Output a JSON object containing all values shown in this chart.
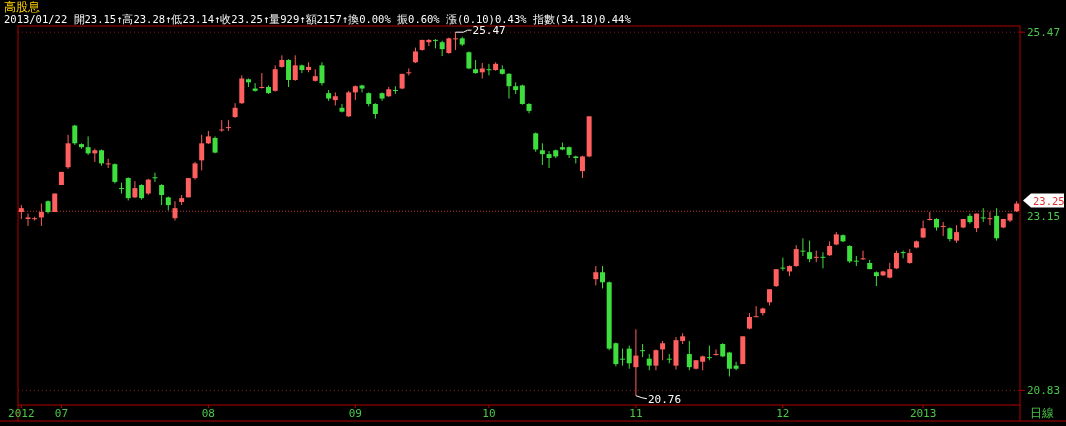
{
  "chart_data": {
    "type": "candlestick",
    "title": "高股息",
    "subtitle": "2013/01/22 開23.15↑高23.28↑低23.14↑收23.25↑量929↑額2157↑換0.00% 振0.60% 漲(0.10)0.43% 指數(34.18)0.44%",
    "categories": [
      "2012",
      null,
      null,
      null,
      null,
      null,
      "07",
      null,
      null,
      null,
      null,
      null,
      null,
      null,
      null,
      null,
      null,
      null,
      null,
      null,
      null,
      null,
      null,
      null,
      null,
      null,
      null,
      null,
      "08",
      null,
      null,
      null,
      null,
      null,
      null,
      null,
      null,
      null,
      null,
      null,
      null,
      null,
      null,
      null,
      null,
      null,
      null,
      null,
      null,
      null,
      "09",
      null,
      null,
      null,
      null,
      null,
      null,
      null,
      null,
      null,
      null,
      null,
      null,
      null,
      null,
      null,
      null,
      null,
      null,
      null,
      "10",
      null,
      null,
      null,
      null,
      null,
      null,
      null,
      null,
      null,
      null,
      null,
      null,
      null,
      null,
      null,
      null,
      null,
      null,
      null,
      null,
      null,
      "11",
      null,
      null,
      null,
      null,
      null,
      null,
      null,
      null,
      null,
      null,
      null,
      null,
      null,
      null,
      null,
      null,
      null,
      null,
      null,
      null,
      null,
      "12",
      null,
      null,
      null,
      null,
      null,
      null,
      null,
      null,
      null,
      null,
      null,
      null,
      null,
      null,
      null,
      null,
      null,
      null,
      null,
      null,
      "2013",
      null,
      null,
      null,
      null,
      null,
      null,
      null,
      null,
      null,
      null,
      null,
      null,
      null,
      null
    ],
    "ohlc": [
      [
        23.14,
        23.23,
        23.05,
        23.19
      ],
      [
        23.05,
        23.12,
        22.96,
        23.07
      ],
      [
        23.05,
        23.08,
        23.03,
        23.06
      ],
      [
        23.07,
        23.25,
        22.96,
        23.14
      ],
      [
        23.28,
        23.29,
        23.12,
        23.14
      ],
      [
        23.14,
        23.38,
        23.14,
        23.38
      ],
      [
        23.49,
        23.66,
        23.49,
        23.66
      ],
      [
        23.72,
        24.14,
        23.7,
        24.03
      ],
      [
        24.26,
        24.27,
        24.01,
        24.03
      ],
      [
        24.02,
        24.03,
        23.96,
        23.98
      ],
      [
        23.98,
        24.12,
        23.88,
        23.9
      ],
      [
        23.9,
        23.96,
        23.79,
        23.94
      ],
      [
        23.94,
        23.95,
        23.74,
        23.77
      ],
      [
        23.77,
        23.83,
        23.71,
        23.77
      ],
      [
        23.76,
        23.77,
        23.51,
        23.53
      ],
      [
        23.45,
        23.52,
        23.38,
        23.45
      ],
      [
        23.58,
        23.59,
        23.29,
        23.32
      ],
      [
        23.33,
        23.54,
        23.32,
        23.45
      ],
      [
        23.49,
        23.5,
        23.3,
        23.32
      ],
      [
        23.38,
        23.57,
        23.36,
        23.56
      ],
      [
        23.59,
        23.65,
        23.53,
        23.59
      ],
      [
        23.49,
        23.5,
        23.23,
        23.36
      ],
      [
        23.33,
        23.34,
        23.16,
        23.23
      ],
      [
        23.06,
        23.28,
        23.03,
        23.19
      ],
      [
        23.27,
        23.36,
        23.23,
        23.32
      ],
      [
        23.33,
        23.58,
        23.33,
        23.58
      ],
      [
        23.58,
        23.79,
        23.56,
        23.77
      ],
      [
        23.81,
        24.14,
        23.68,
        24.03
      ],
      [
        24.03,
        24.19,
        24.02,
        24.12
      ],
      [
        24.1,
        24.12,
        23.9,
        23.91
      ],
      [
        24.21,
        24.33,
        24.18,
        24.21
      ],
      [
        24.24,
        24.33,
        24.19,
        24.24
      ],
      [
        24.37,
        24.55,
        24.36,
        24.49
      ],
      [
        24.55,
        24.91,
        24.54,
        24.87
      ],
      [
        24.86,
        24.87,
        24.76,
        24.82
      ],
      [
        24.74,
        24.81,
        24.7,
        24.71
      ],
      [
        24.76,
        24.94,
        24.74,
        24.76
      ],
      [
        24.76,
        24.78,
        24.67,
        24.68
      ],
      [
        24.71,
        25.04,
        24.7,
        24.99
      ],
      [
        25.02,
        25.17,
        25.01,
        25.11
      ],
      [
        25.11,
        25.12,
        24.76,
        24.85
      ],
      [
        24.85,
        25.17,
        24.84,
        25.04
      ],
      [
        25.04,
        25.05,
        24.94,
        24.98
      ],
      [
        24.98,
        25.08,
        24.95,
        25.02
      ],
      [
        24.84,
        24.99,
        24.83,
        24.9
      ],
      [
        25.04,
        25.08,
        24.78,
        24.81
      ],
      [
        24.68,
        24.72,
        24.58,
        24.61
      ],
      [
        24.59,
        24.69,
        24.52,
        24.64
      ],
      [
        24.49,
        24.54,
        24.43,
        24.44
      ],
      [
        24.38,
        24.71,
        24.37,
        24.69
      ],
      [
        24.69,
        24.78,
        24.59,
        24.77
      ],
      [
        24.78,
        24.79,
        24.69,
        24.74
      ],
      [
        24.68,
        24.69,
        24.51,
        24.54
      ],
      [
        24.54,
        24.55,
        24.35,
        24.41
      ],
      [
        24.68,
        24.69,
        24.58,
        24.61
      ],
      [
        24.64,
        24.76,
        24.63,
        24.73
      ],
      [
        24.72,
        24.77,
        24.67,
        24.72
      ],
      [
        24.74,
        24.93,
        24.73,
        24.93
      ],
      [
        24.95,
        25.0,
        24.91,
        24.95
      ],
      [
        25.08,
        25.27,
        25.07,
        25.22
      ],
      [
        25.24,
        25.37,
        25.23,
        25.37
      ],
      [
        25.34,
        25.38,
        25.29,
        25.37
      ],
      [
        25.37,
        25.38,
        25.26,
        25.36
      ],
      [
        25.34,
        25.36,
        25.16,
        25.25
      ],
      [
        25.2,
        25.4,
        25.19,
        25.39
      ],
      [
        25.39,
        25.47,
        25.24,
        25.39
      ],
      [
        25.39,
        25.41,
        25.29,
        25.31
      ],
      [
        25.21,
        25.22,
        24.99,
        25.0
      ],
      [
        24.99,
        25.11,
        24.93,
        24.94
      ],
      [
        24.95,
        25.07,
        24.87,
        25.0
      ],
      [
        24.99,
        25.06,
        24.91,
        24.99
      ],
      [
        24.98,
        25.08,
        24.97,
        25.06
      ],
      [
        24.99,
        25.04,
        24.92,
        24.93
      ],
      [
        24.93,
        24.94,
        24.61,
        24.77
      ],
      [
        24.77,
        24.82,
        24.67,
        24.72
      ],
      [
        24.78,
        24.79,
        24.53,
        24.54
      ],
      [
        24.54,
        24.55,
        24.42,
        24.45
      ],
      [
        24.16,
        24.17,
        23.92,
        23.95
      ],
      [
        23.94,
        24.03,
        23.75,
        23.89
      ],
      [
        23.89,
        23.93,
        23.71,
        23.84
      ],
      [
        23.94,
        23.95,
        23.84,
        23.86
      ],
      [
        23.98,
        24.04,
        23.94,
        23.95
      ],
      [
        23.98,
        23.99,
        23.84,
        23.88
      ],
      [
        23.86,
        23.87,
        23.77,
        23.84
      ],
      [
        23.67,
        23.87,
        23.58,
        23.86
      ],
      [
        23.86,
        24.38,
        23.85,
        24.38
      ],
      [
        22.27,
        22.44,
        22.19,
        22.36
      ],
      [
        22.36,
        22.44,
        22.15,
        22.23
      ],
      [
        22.23,
        22.24,
        21.35,
        21.37
      ],
      [
        21.44,
        21.45,
        21.14,
        21.17
      ],
      [
        21.24,
        21.37,
        21.15,
        21.24
      ],
      [
        21.37,
        21.41,
        21.11,
        21.18
      ],
      [
        21.13,
        21.62,
        20.76,
        21.28
      ],
      [
        21.35,
        21.43,
        21.26,
        21.35
      ],
      [
        21.24,
        21.3,
        21.09,
        21.15
      ],
      [
        21.15,
        21.36,
        21.09,
        21.35
      ],
      [
        21.36,
        21.47,
        21.22,
        21.44
      ],
      [
        21.24,
        21.3,
        21.18,
        21.24
      ],
      [
        21.15,
        21.52,
        21.1,
        21.48
      ],
      [
        21.47,
        21.57,
        21.43,
        21.53
      ],
      [
        21.3,
        21.47,
        21.09,
        21.13
      ],
      [
        21.11,
        21.22,
        21.1,
        21.22
      ],
      [
        21.2,
        21.28,
        21.09,
        21.27
      ],
      [
        21.26,
        21.41,
        21.22,
        21.26
      ],
      [
        21.29,
        21.36,
        21.28,
        21.3
      ],
      [
        21.43,
        21.44,
        21.26,
        21.27
      ],
      [
        21.32,
        21.33,
        21.01,
        21.11
      ],
      [
        21.15,
        21.2,
        21.09,
        21.11
      ],
      [
        21.17,
        21.53,
        21.17,
        21.53
      ],
      [
        21.63,
        21.83,
        21.62,
        21.78
      ],
      [
        21.79,
        21.92,
        21.78,
        21.79
      ],
      [
        21.83,
        21.9,
        21.8,
        21.89
      ],
      [
        21.97,
        22.14,
        21.93,
        22.14
      ],
      [
        22.18,
        22.4,
        22.17,
        22.4
      ],
      [
        22.42,
        22.55,
        22.38,
        22.41
      ],
      [
        22.37,
        22.45,
        22.31,
        22.44
      ],
      [
        22.44,
        22.71,
        22.43,
        22.66
      ],
      [
        22.64,
        22.8,
        22.57,
        22.63
      ],
      [
        22.62,
        22.77,
        22.49,
        22.53
      ],
      [
        22.55,
        22.64,
        22.49,
        22.56
      ],
      [
        22.56,
        22.62,
        22.41,
        22.55
      ],
      [
        22.58,
        22.76,
        22.57,
        22.7
      ],
      [
        22.72,
        22.88,
        22.71,
        22.85
      ],
      [
        22.84,
        22.85,
        22.75,
        22.76
      ],
      [
        22.7,
        22.71,
        22.48,
        22.5
      ],
      [
        22.51,
        22.57,
        22.44,
        22.5
      ],
      [
        22.53,
        22.64,
        22.52,
        22.54
      ],
      [
        22.48,
        22.52,
        22.4,
        22.4
      ],
      [
        22.36,
        22.37,
        22.18,
        22.31
      ],
      [
        22.32,
        22.38,
        22.31,
        22.37
      ],
      [
        22.29,
        22.48,
        22.28,
        22.4
      ],
      [
        22.41,
        22.64,
        22.4,
        22.61
      ],
      [
        22.62,
        22.64,
        22.54,
        22.61
      ],
      [
        22.48,
        22.66,
        22.47,
        22.61
      ],
      [
        22.68,
        22.77,
        22.67,
        22.76
      ],
      [
        22.81,
        23.03,
        22.8,
        22.93
      ],
      [
        23.04,
        23.14,
        23.03,
        23.05
      ],
      [
        23.05,
        23.06,
        22.9,
        22.94
      ],
      [
        22.95,
        23.01,
        22.83,
        22.96
      ],
      [
        22.93,
        22.94,
        22.76,
        22.79
      ],
      [
        22.77,
        22.97,
        22.74,
        22.88
      ],
      [
        22.94,
        23.05,
        22.93,
        23.05
      ],
      [
        23.09,
        23.12,
        22.99,
        23.01
      ],
      [
        22.93,
        23.12,
        22.88,
        23.12
      ],
      [
        23.07,
        23.19,
        23.01,
        23.07
      ],
      [
        23.06,
        23.14,
        22.97,
        23.06
      ],
      [
        23.09,
        23.19,
        22.77,
        22.8
      ],
      [
        22.94,
        23.05,
        22.93,
        23.05
      ],
      [
        23.03,
        23.12,
        23.01,
        23.12
      ],
      [
        23.15,
        23.28,
        23.14,
        23.25
      ]
    ],
    "colors": [
      "#ff5f5f",
      "#ff5f5f",
      "#ff5f5f",
      "#ff5f5f",
      "#3ede3e",
      "#ff5f5f",
      "#ff5f5f",
      "#ff5f5f",
      "#3ede3e",
      "#3ede3e",
      "#3ede3e",
      "#ff5f5f",
      "#3ede3e",
      "#ff5f5f",
      "#3ede3e",
      "#3ede3e",
      "#3ede3e",
      "#ff5f5f",
      "#3ede3e",
      "#ff5f5f",
      "#3ede3e",
      "#3ede3e",
      "#3ede3e",
      "#ff5f5f",
      "#ff5f5f",
      "#ff5f5f",
      "#ff5f5f",
      "#ff5f5f",
      "#ff5f5f",
      "#3ede3e",
      "#ff5f5f",
      "#ff5f5f",
      "#ff5f5f",
      "#ff5f5f",
      "#3ede3e",
      "#3ede3e",
      "#ff5f5f",
      "#3ede3e",
      "#ff5f5f",
      "#ff5f5f",
      "#3ede3e",
      "#ff5f5f",
      "#3ede3e",
      "#ff5f5f",
      "#ff5f5f",
      "#3ede3e",
      "#3ede3e",
      "#ff5f5f",
      "#3ede3e",
      "#ff5f5f",
      "#ff5f5f",
      "#3ede3e",
      "#3ede3e",
      "#3ede3e",
      "#3ede3e",
      "#ff5f5f",
      "#3ede3e",
      "#ff5f5f",
      "#ff5f5f",
      "#ff5f5f",
      "#ff5f5f",
      "#ff5f5f",
      "#3ede3e",
      "#3ede3e",
      "#ff5f5f",
      "#ff5f5f",
      "#3ede3e",
      "#3ede3e",
      "#3ede3e",
      "#ff5f5f",
      "#3ede3e",
      "#ff5f5f",
      "#3ede3e",
      "#3ede3e",
      "#3ede3e",
      "#3ede3e",
      "#3ede3e",
      "#3ede3e",
      "#3ede3e",
      "#3ede3e",
      "#3ede3e",
      "#3ede3e",
      "#3ede3e",
      "#3ede3e",
      "#ff5f5f",
      "#ff5f5f",
      "#ff5f5f",
      "#3ede3e",
      "#3ede3e",
      "#3ede3e",
      "#3ede3e",
      "#3ede3e",
      "#ff5f5f",
      "#3ede3e",
      "#3ede3e",
      "#ff5f5f",
      "#ff5f5f",
      "#3ede3e",
      "#ff5f5f",
      "#ff5f5f",
      "#3ede3e",
      "#ff5f5f",
      "#ff5f5f",
      "#3ede3e",
      "#ff5f5f",
      "#3ede3e",
      "#3ede3e",
      "#3ede3e",
      "#ff5f5f",
      "#ff5f5f",
      "#ff5f5f",
      "#ff5f5f",
      "#ff5f5f",
      "#ff5f5f",
      "#3ede3e",
      "#ff5f5f",
      "#ff5f5f",
      "#3ede3e",
      "#3ede3e",
      "#ff5f5f",
      "#3ede3e",
      "#ff5f5f",
      "#ff5f5f",
      "#3ede3e",
      "#3ede3e",
      "#3ede3e",
      "#ff5f5f",
      "#3ede3e",
      "#3ede3e",
      "#ff5f5f",
      "#ff5f5f",
      "#ff5f5f",
      "#3ede3e",
      "#ff5f5f",
      "#ff5f5f",
      "#ff5f5f",
      "#ff5f5f",
      "#3ede3e",
      "#ff5f5f",
      "#3ede3e",
      "#ff5f5f",
      "#ff5f5f",
      "#3ede3e",
      "#ff5f5f",
      "#3ede3e",
      "#ff5f5f",
      "#3ede3e",
      "#ff5f5f",
      "#ff5f5f",
      "#ff5f5f"
    ],
    "ylim": [
      20.64,
      25.55
    ],
    "yticks": [
      25.47,
      20.83
    ],
    "grid": "y",
    "ref_lines": [
      {
        "axis": "y",
        "value": 23.15,
        "label": "23.15",
        "color": "#c03030",
        "line_style": "dotted"
      }
    ],
    "annotations": [
      "25.47",
      "20.76",
      "23.25",
      "日線"
    ]
  }
}
